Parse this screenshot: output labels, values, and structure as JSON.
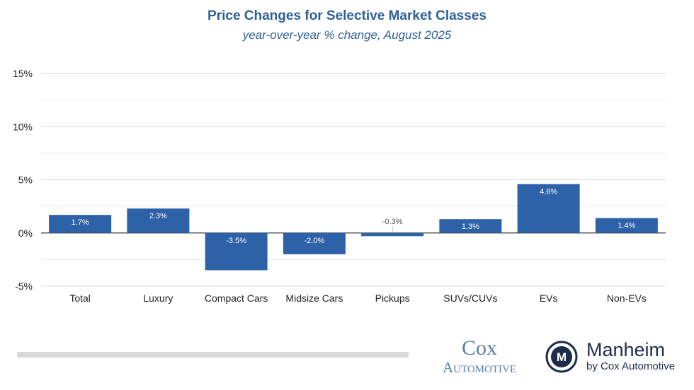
{
  "chart_data": {
    "type": "bar",
    "title": "Price Changes for Selective Market Classes",
    "subtitle": "year-over-year % change, August 2025",
    "categories": [
      "Total",
      "Luxury",
      "Compact Cars",
      "Midsize Cars",
      "Pickups",
      "SUVs/CUVs",
      "EVs",
      "Non-EVs"
    ],
    "values": [
      1.7,
      2.3,
      -3.5,
      -2.0,
      -0.3,
      1.3,
      4.6,
      1.4
    ],
    "data_labels": [
      "1.7%",
      "2.3%",
      "-3.5%",
      "-2.0%",
      "-0.3%",
      "1.3%",
      "4.6%",
      "1.4%"
    ],
    "ylim": [
      -5,
      15
    ],
    "y_ticks": [
      15,
      10,
      5,
      0,
      -5
    ],
    "y_tick_labels": [
      "15%",
      "10%",
      "5%",
      "0%",
      "-5%"
    ],
    "minor_gridlines": [
      12.5,
      7.5,
      2.5,
      -2.5
    ],
    "bar_color": "#2e62a8",
    "grid": true,
    "legend": "none"
  },
  "branding": {
    "cox_line1": "Cox",
    "cox_line2": "Automotive",
    "manheim_name": "Manheim",
    "manheim_sub": "by Cox Automotive",
    "manheim_emblem_letter": "M"
  },
  "colors": {
    "title": "#2e5f99",
    "cox": "#5b7fa6",
    "manheim": "#1e2d4a"
  }
}
